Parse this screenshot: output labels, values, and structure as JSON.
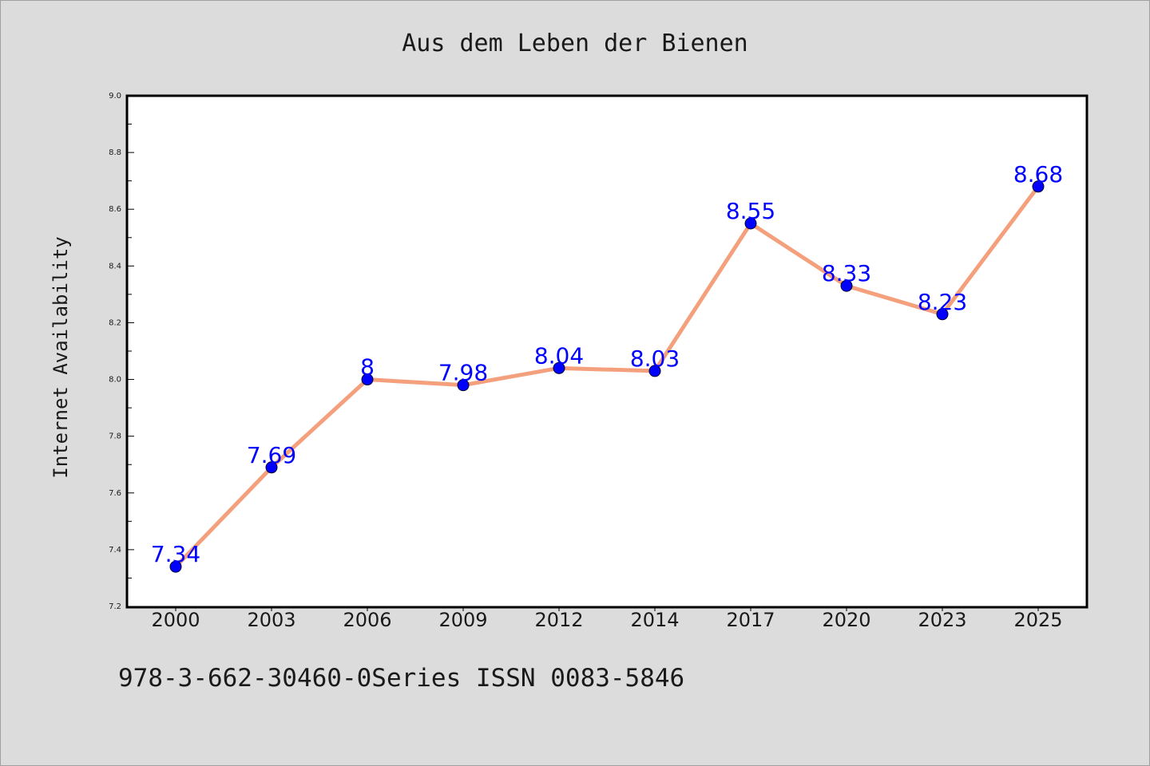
{
  "chart_data": {
    "type": "line",
    "title": "Aus dem Leben der Bienen",
    "xlabel": "",
    "ylabel": "Internet Availability",
    "categories": [
      "2000",
      "2003",
      "2006",
      "2009",
      "2012",
      "2014",
      "2017",
      "2020",
      "2023",
      "2025"
    ],
    "series": [
      {
        "values": [
          7.34,
          7.69,
          8.0,
          7.98,
          8.04,
          8.03,
          8.55,
          8.33,
          8.23,
          8.68
        ],
        "labels": [
          "7.34",
          "7.69",
          "8",
          "7.98",
          "8.04",
          "8.03",
          "8.55",
          "8.33",
          "8.23",
          "8.68"
        ]
      }
    ],
    "ylim": [
      7.2,
      9.0
    ],
    "yticks": [
      "7.2",
      "7.4",
      "7.6",
      "7.8",
      "8.0",
      "8.2",
      "8.4",
      "8.6",
      "8.8",
      "9.0"
    ],
    "grid": false,
    "colors": {
      "line": "#f4a07c",
      "marker_fill": "#0000ff",
      "marker_edge": "#000033",
      "data_label": "#0000ff",
      "background": "#dcdcdc",
      "plot_background": "#ffffff"
    }
  },
  "footer": {
    "note": "978-3-662-30460-0Series ISSN 0083-5846"
  }
}
